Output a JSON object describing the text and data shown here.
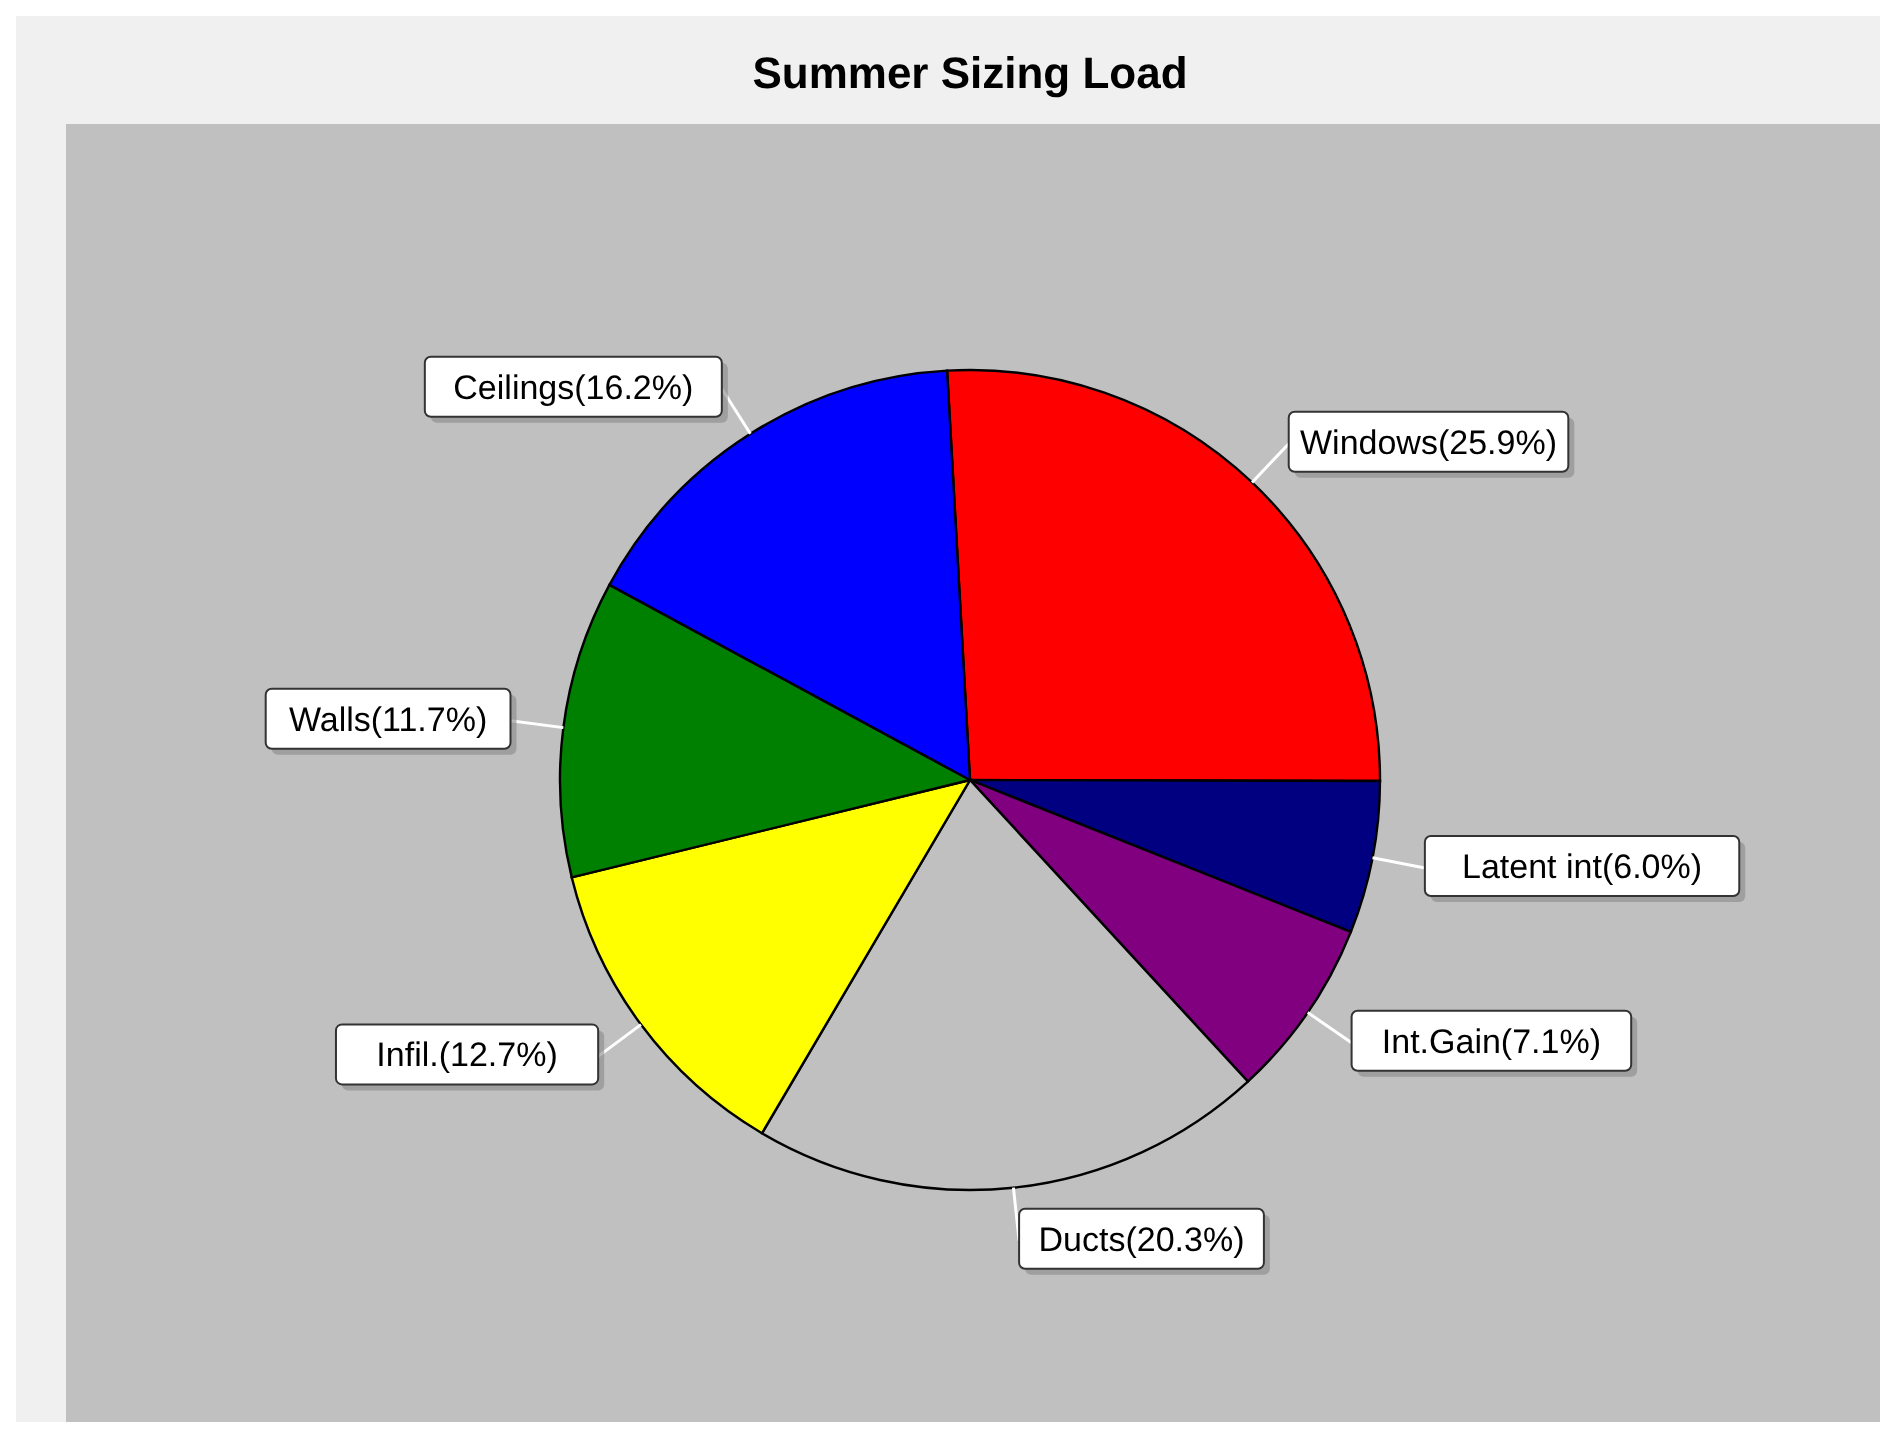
{
  "chart_data": {
    "type": "pie",
    "title": "Summer Sizing Load",
    "categories": [
      "Windows(25.9%)",
      "Latent int(6.0%)",
      "Int.Gain(7.1%)",
      "Ducts(20.3%)",
      "Infil.(12.7%)",
      "Walls(11.7%)",
      "Ceilings(16.2%)"
    ],
    "values": [
      25.9,
      6.0,
      7.1,
      20.3,
      12.7,
      11.7,
      16.2
    ],
    "colors": [
      "#ff0000",
      "#000080",
      "#800080",
      "#c0c0c0",
      "#ffff00",
      "#008000",
      "#0000ff"
    ]
  }
}
